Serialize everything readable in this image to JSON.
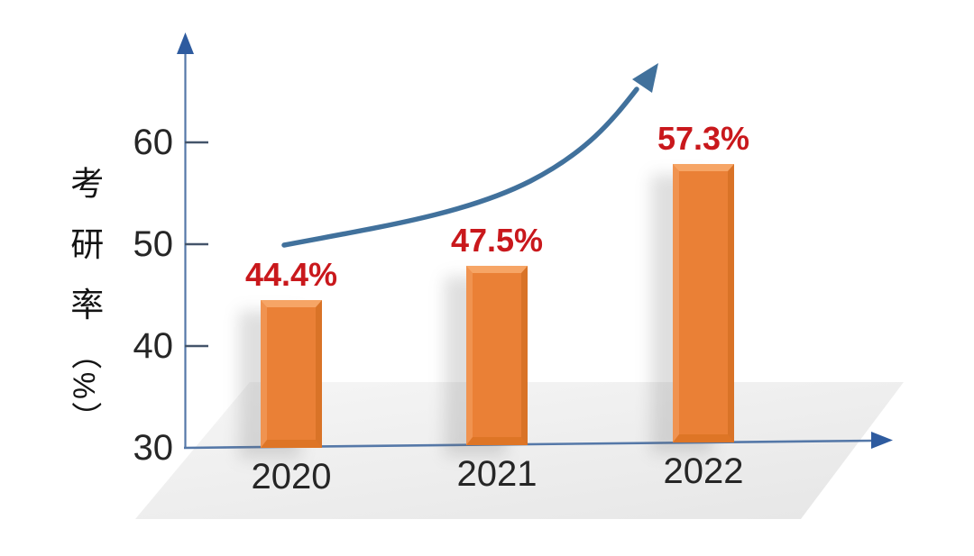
{
  "chart_data": {
    "type": "bar",
    "title": "",
    "categories": [
      "2020",
      "2021",
      "2022"
    ],
    "values": [
      44.4,
      47.5,
      57.3
    ],
    "value_labels": [
      "44.4%",
      "47.5%",
      "57.3%"
    ],
    "xlabel": "",
    "ylabel": "考研率（%）",
    "yticks": [
      30,
      40,
      50,
      60
    ],
    "ylim": [
      30,
      65
    ],
    "grid": false,
    "legend": false,
    "annotations": [
      {
        "type": "trend-arrow",
        "description": "upward curving arrow showing increasing trend"
      }
    ],
    "colors": {
      "bar": "#EA8036",
      "bar-top": "#F6A566",
      "bar-left": "#F09350",
      "bar-right": "#D97327",
      "bar-bottom": "#DE7526",
      "value-label": "#C9181C",
      "text": "#262626",
      "axis-line": "#5578A8",
      "axis-arrow": "#2E5B9F",
      "tick": "#44546A",
      "trend": "#41719C",
      "floor-a": "#F6F6F6",
      "floor-b": "#E7E7E7"
    }
  }
}
